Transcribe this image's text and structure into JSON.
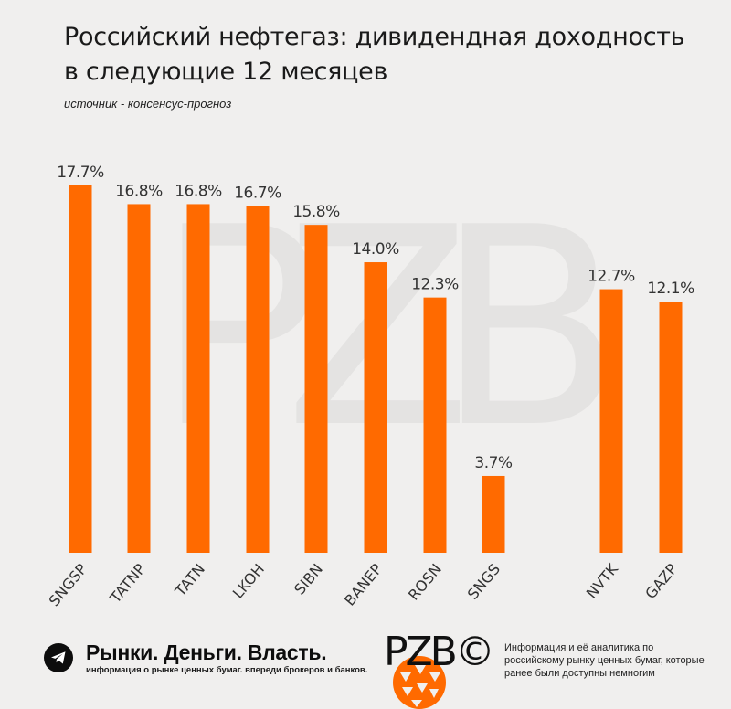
{
  "title": "Российский нефтегаз: дивидендная доходность в следующие 12 месяцев",
  "source": "источник - консенсус-прогноз",
  "watermark": "PZB",
  "chart_data": {
    "type": "bar",
    "categories": [
      "SNGSP",
      "TATNP",
      "TATN",
      "LKOH",
      "SIBN",
      "BANEP",
      "ROSN",
      "SNGS",
      "NVTK",
      "GAZP"
    ],
    "values": [
      17.7,
      16.8,
      16.8,
      16.7,
      15.8,
      14.0,
      12.3,
      3.7,
      12.7,
      12.1
    ],
    "data_labels": [
      "17.7%",
      "16.8%",
      "16.8%",
      "16.7%",
      "15.8%",
      "14.0%",
      "12.3%",
      "3.7%",
      "12.7%",
      "12.1%"
    ],
    "unit": "%",
    "ylim": [
      0,
      17.7
    ],
    "grid": false,
    "bar_color": "#ff6a00"
  },
  "footer": {
    "brand": "Рынки. Деньги. Власть.",
    "tagline": "информация о рынке ценных бумаг. впереди брокеров и банков.",
    "logo": "PZB©",
    "description": "Информация и её аналитика по российскому рынку ценных бумаг, которые ранее были доступны немногим",
    "icon": "telegram-icon"
  }
}
